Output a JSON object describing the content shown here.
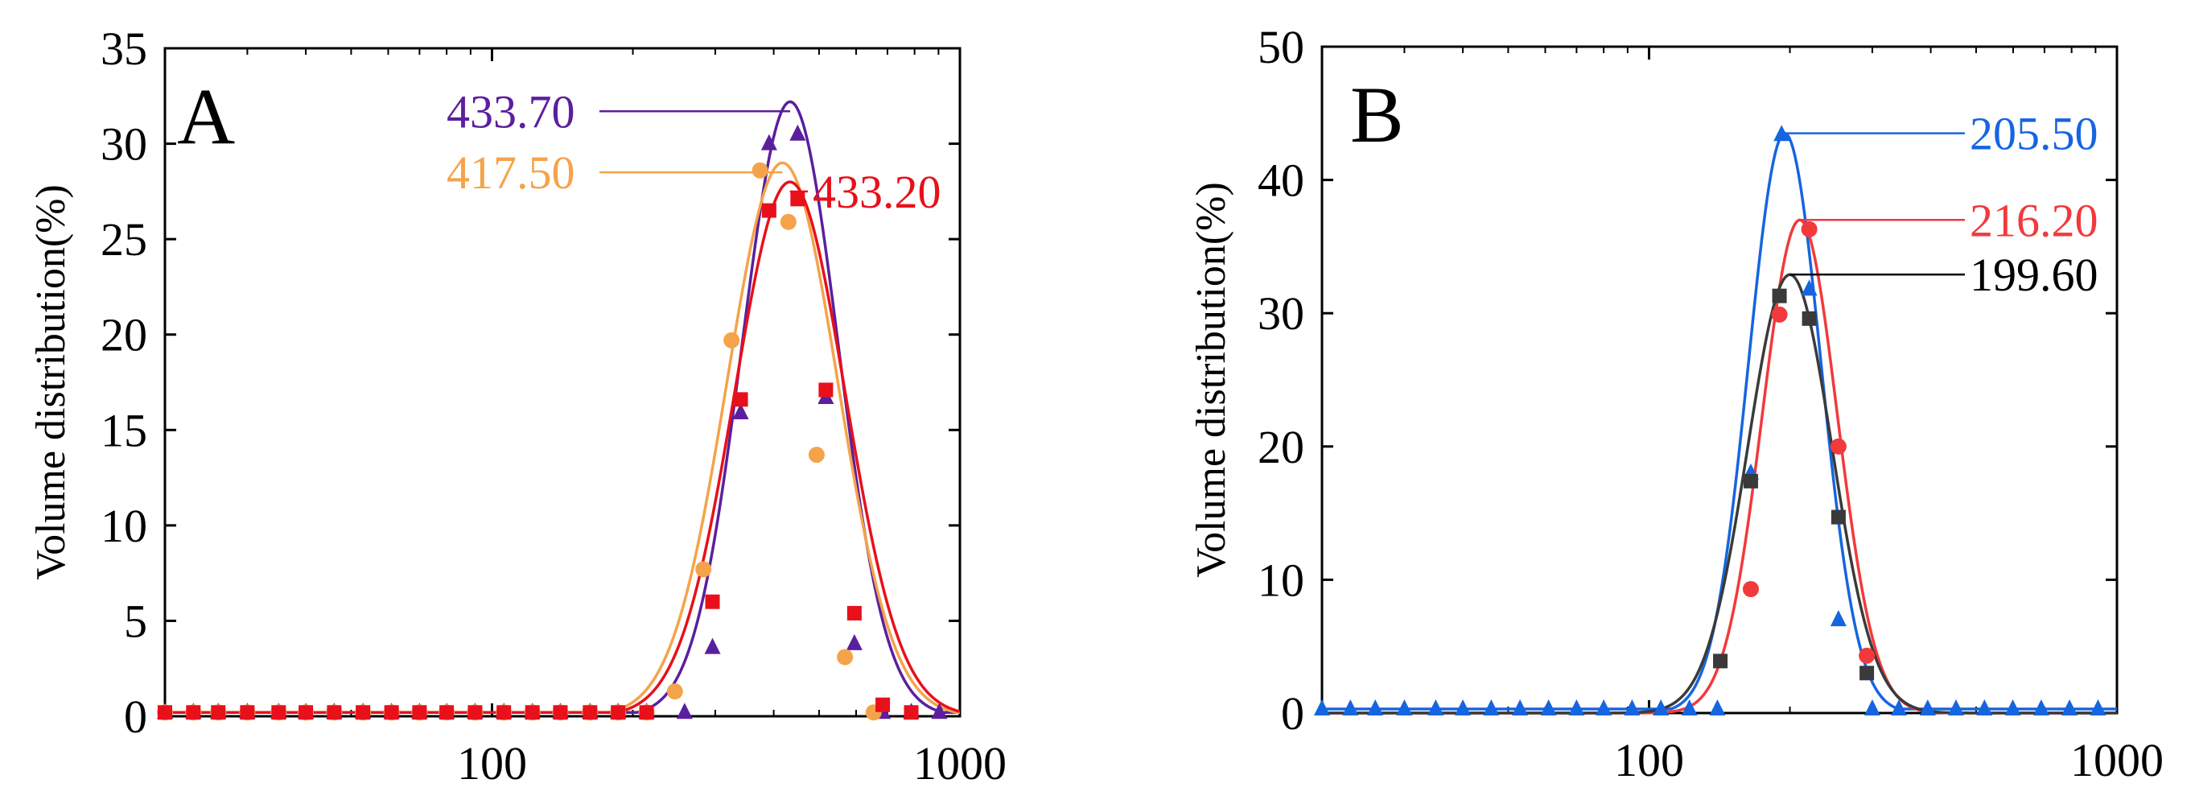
{
  "colors": {
    "black": "#000000",
    "purple": "#5b1f9e",
    "orange": "#f5a34a",
    "red": "#e8101b",
    "blue": "#1565e0",
    "gray": "#3a3a3a",
    "lightred": "#f2393c"
  },
  "chart_data": [
    {
      "type": "scatter",
      "panel_label": "A",
      "xscale": "log",
      "xlim": [
        20,
        1000
      ],
      "ylim": [
        0,
        35
      ],
      "xticks": [
        100,
        1000
      ],
      "xtick_labels": [
        "100",
        "1000"
      ],
      "yticks": [
        0,
        5,
        10,
        15,
        20,
        25,
        30,
        35
      ],
      "ytick_labels": [
        "0",
        "5",
        "10",
        "15",
        "20",
        "25",
        "30",
        "35"
      ],
      "xlabel": "",
      "ylabel": "Volume distribution(%)",
      "series": [
        {
          "name": "433.70",
          "color": "#5b1f9e",
          "marker": "triangle",
          "peak_x": 433.7,
          "peak_y": 32.2,
          "fit_sigma_log": 0.1025,
          "points": [
            [
              20,
              0.2
            ],
            [
              23,
              0.2
            ],
            [
              26,
              0.2
            ],
            [
              30,
              0.2
            ],
            [
              35,
              0.2
            ],
            [
              40,
              0.2
            ],
            [
              46,
              0.2
            ],
            [
              53,
              0.2
            ],
            [
              61,
              0.2
            ],
            [
              70,
              0.2
            ],
            [
              80,
              0.2
            ],
            [
              92,
              0.2
            ],
            [
              106,
              0.2
            ],
            [
              122,
              0.2
            ],
            [
              140,
              0.2
            ],
            [
              162,
              0.2
            ],
            [
              186,
              0.2
            ],
            [
              214,
              0.2
            ],
            [
              258,
              0.2
            ],
            [
              296,
              3.6
            ],
            [
              340,
              15.9
            ],
            [
              391,
              30.0
            ],
            [
              450,
              30.5
            ],
            [
              517,
              16.7
            ],
            [
              595,
              3.8
            ],
            [
              684,
              0.2
            ],
            [
              787,
              0.2
            ],
            [
              904,
              0.2
            ]
          ]
        },
        {
          "name": "417.50",
          "color": "#f5a34a",
          "marker": "circle",
          "peak_x": 417.5,
          "peak_y": 29.0,
          "fit_sigma_log": 0.118,
          "points": [
            [
              20,
              0.2
            ],
            [
              23,
              0.2
            ],
            [
              26,
              0.2
            ],
            [
              30,
              0.2
            ],
            [
              35,
              0.2
            ],
            [
              40,
              0.2
            ],
            [
              46,
              0.2
            ],
            [
              53,
              0.2
            ],
            [
              61,
              0.2
            ],
            [
              70,
              0.2
            ],
            [
              80,
              0.2
            ],
            [
              92,
              0.2
            ],
            [
              106,
              0.2
            ],
            [
              122,
              0.2
            ],
            [
              140,
              0.2
            ],
            [
              162,
              0.2
            ],
            [
              186,
              0.2
            ],
            [
              214,
              0.2
            ],
            [
              246,
              1.3
            ],
            [
              283,
              7.7
            ],
            [
              325,
              19.7
            ],
            [
              374,
              28.6
            ],
            [
              430,
              25.9
            ],
            [
              494,
              13.7
            ],
            [
              568,
              3.1
            ],
            [
              654,
              0.2
            ]
          ]
        },
        {
          "name": "433.20",
          "color": "#e8101b",
          "marker": "square",
          "peak_x": 433.2,
          "peak_y": 28.0,
          "fit_sigma_log": 0.118,
          "points": [
            [
              20,
              0.2
            ],
            [
              23,
              0.2
            ],
            [
              26,
              0.2
            ],
            [
              30,
              0.2
            ],
            [
              35,
              0.2
            ],
            [
              40,
              0.2
            ],
            [
              46,
              0.2
            ],
            [
              53,
              0.2
            ],
            [
              61,
              0.2
            ],
            [
              70,
              0.2
            ],
            [
              80,
              0.2
            ],
            [
              92,
              0.2
            ],
            [
              106,
              0.2
            ],
            [
              122,
              0.2
            ],
            [
              140,
              0.2
            ],
            [
              162,
              0.2
            ],
            [
              186,
              0.2
            ],
            [
              214,
              0.2
            ],
            [
              296,
              6.0
            ],
            [
              340,
              16.6
            ],
            [
              391,
              26.5
            ],
            [
              450,
              27.1
            ],
            [
              517,
              17.1
            ],
            [
              595,
              5.4
            ],
            [
              684,
              0.6
            ],
            [
              787,
              0.2
            ]
          ]
        }
      ],
      "annotations": [
        {
          "text": "433.70",
          "color": "#5b1f9e",
          "side": "left",
          "y": 31.7
        },
        {
          "text": "417.50",
          "color": "#f5a34a",
          "side": "left",
          "y": 28.5
        },
        {
          "text": "433.20",
          "color": "#e8101b",
          "side": "right",
          "y": 27.5
        }
      ]
    },
    {
      "type": "scatter",
      "panel_label": "B",
      "xscale": "log",
      "xlim": [
        20,
        1000
      ],
      "ylim": [
        0,
        50
      ],
      "xticks": [
        100,
        1000
      ],
      "xtick_labels": [
        "100",
        "1000"
      ],
      "yticks": [
        0,
        10,
        20,
        30,
        40,
        50
      ],
      "ytick_labels": [
        "0",
        "10",
        "20",
        "30",
        "40",
        "50"
      ],
      "xlabel": "",
      "ylabel": "Volume distribution(%)",
      "series": [
        {
          "name": "205.50",
          "color": "#1565e0",
          "marker": "triangle",
          "peak_x": 195.0,
          "peak_y": 43.5,
          "fit_sigma_log": 0.0772,
          "points": [
            [
              20,
              0.3
            ],
            [
              23,
              0.3
            ],
            [
              26,
              0.3
            ],
            [
              30,
              0.3
            ],
            [
              35,
              0.3
            ],
            [
              40,
              0.3
            ],
            [
              46,
              0.3
            ],
            [
              53,
              0.3
            ],
            [
              61,
              0.3
            ],
            [
              70,
              0.3
            ],
            [
              80,
              0.3
            ],
            [
              92,
              0.3
            ],
            [
              106,
              0.3
            ],
            [
              122,
              0.3
            ],
            [
              140,
              0.3
            ],
            [
              165,
              18.0
            ],
            [
              192,
              43.4
            ],
            [
              220,
              31.8
            ],
            [
              254,
              7.0
            ],
            [
              300,
              0.3
            ],
            [
              342,
              0.3
            ],
            [
              394,
              0.3
            ],
            [
              453,
              0.3
            ],
            [
              521,
              0.3
            ],
            [
              599,
              0.3
            ],
            [
              689,
              0.3
            ],
            [
              792,
              0.3
            ],
            [
              911,
              0.3
            ]
          ]
        },
        {
          "name": "216.20",
          "color": "#f2393c",
          "marker": "circle",
          "peak_x": 210.0,
          "peak_y": 37.0,
          "fit_sigma_log": 0.08,
          "points": [
            [
              165,
              9.3
            ],
            [
              190,
              29.9
            ],
            [
              220,
              36.3
            ],
            [
              254,
              20.0
            ],
            [
              292,
              4.3
            ]
          ]
        },
        {
          "name": "199.60",
          "color": "#3a3a3a",
          "marker": "square",
          "peak_x": 200.0,
          "peak_y": 32.9,
          "fit_sigma_log": 0.09,
          "points": [
            [
              142,
              3.9
            ],
            [
              165,
              17.4
            ],
            [
              190,
              31.3
            ],
            [
              220,
              29.6
            ],
            [
              254,
              14.7
            ],
            [
              292,
              3.0
            ]
          ]
        }
      ],
      "annotations": [
        {
          "text": "205.50",
          "color": "#1565e0",
          "side": "right",
          "y": 43.5
        },
        {
          "text": "216.20",
          "color": "#f2393c",
          "side": "right",
          "y": 37.0
        },
        {
          "text": "199.60",
          "color": "#000000",
          "side": "right",
          "y": 32.9
        }
      ]
    }
  ]
}
